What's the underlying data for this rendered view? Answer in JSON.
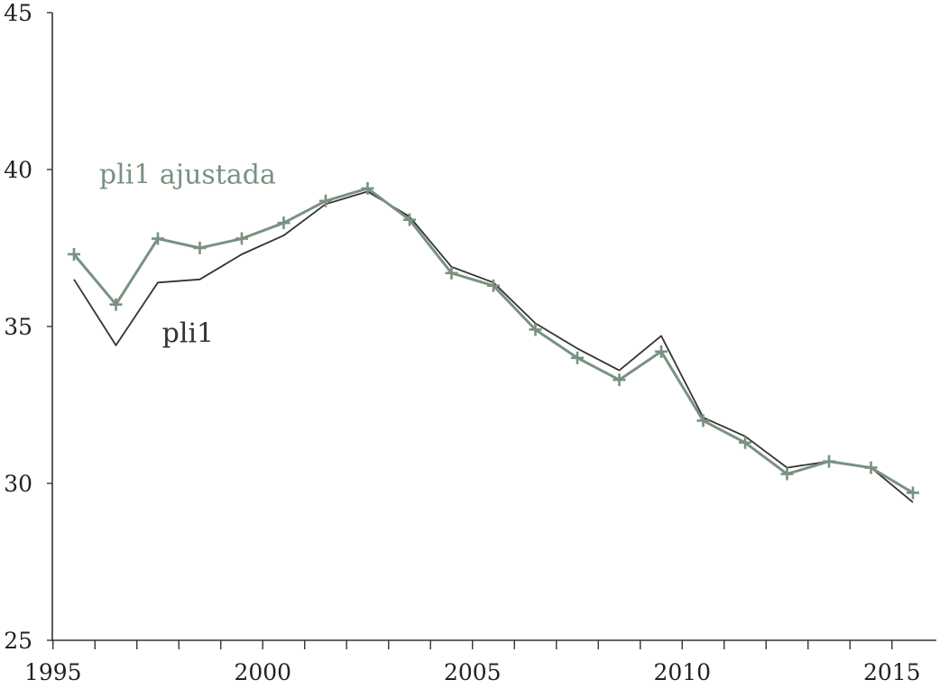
{
  "chart_data": {
    "type": "line",
    "title": "",
    "xlabel": "",
    "ylabel": "",
    "xlim": [
      1995,
      2015
    ],
    "ylim": [
      25,
      45
    ],
    "x_ticks": [
      1995,
      2000,
      2005,
      2010,
      2015
    ],
    "x_tick_labels": [
      "1995",
      "2000",
      "2005",
      "2010",
      "2015"
    ],
    "y_ticks": [
      25,
      30,
      35,
      40,
      45
    ],
    "y_tick_labels": [
      "25",
      "30",
      "35",
      "40",
      "45"
    ],
    "x_minor_tick_step": 1,
    "grid": false,
    "legend": "none",
    "x": [
      1995,
      1996,
      1997,
      1998,
      1999,
      2000,
      2001,
      2002,
      2003,
      2004,
      2005,
      2006,
      2007,
      2008,
      2009,
      2010,
      2011,
      2012,
      2013,
      2014,
      2015
    ],
    "series": [
      {
        "name": "pli1",
        "color": "#333333",
        "marker": "none",
        "values": [
          36.5,
          34.4,
          36.4,
          36.5,
          37.3,
          37.9,
          38.9,
          39.3,
          38.5,
          36.9,
          36.4,
          35.1,
          34.3,
          33.6,
          34.7,
          32.1,
          31.5,
          30.5,
          30.7,
          30.5,
          29.4
        ]
      },
      {
        "name": "pli1 ajustada",
        "color": "#7a9180",
        "marker": "plus",
        "values": [
          37.3,
          35.7,
          37.8,
          37.5,
          37.8,
          38.3,
          39.0,
          39.4,
          38.4,
          36.7,
          36.3,
          34.9,
          34.0,
          33.3,
          34.2,
          32.0,
          31.3,
          30.3,
          30.7,
          30.5,
          29.7
        ]
      }
    ],
    "annotations": [
      {
        "series_index": 1,
        "text": "pli1 ajustada",
        "x": 1996.1,
        "y": 39.55
      },
      {
        "series_index": 0,
        "text": "pli1",
        "x": 1997.6,
        "y": 34.5
      }
    ]
  }
}
